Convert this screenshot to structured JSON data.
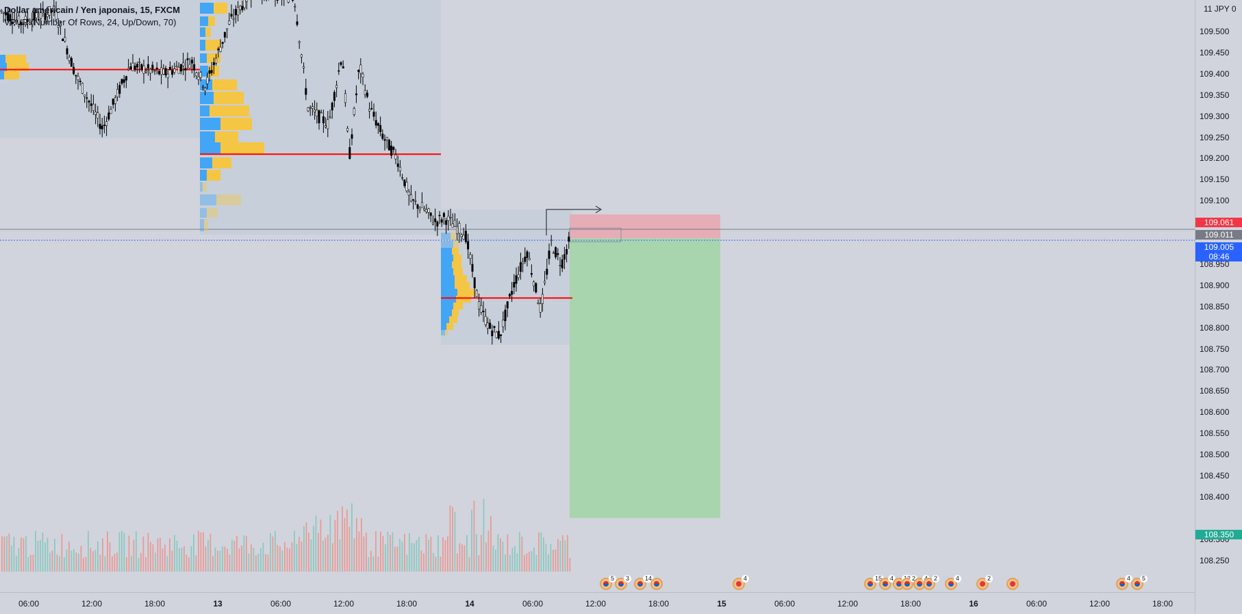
{
  "header": {
    "symbol_line": "Dollar américain / Yen japonais, 15, FXCM",
    "indicator_line": "VPVR (Number Of Rows, 24, Up/Down, 70)",
    "currency_label": "11 JPY 0"
  },
  "price_axis": {
    "ticks": [
      "109.500",
      "109.450",
      "109.400",
      "109.350",
      "109.300",
      "109.250",
      "109.200",
      "109.150",
      "109.100",
      "108.950",
      "108.900",
      "108.850",
      "108.800",
      "108.750",
      "108.700",
      "108.650",
      "108.600",
      "108.550",
      "108.500",
      "108.450",
      "108.400",
      "108.300",
      "108.250"
    ],
    "range": [
      108.22,
      109.55
    ],
    "labels": {
      "stop": {
        "value": "109.061",
        "color": "#f23645"
      },
      "entry": {
        "value": "109.011",
        "color": "#787b86"
      },
      "last": {
        "value": "109.005",
        "countdown": "08:46",
        "color": "#2962ff"
      },
      "target": {
        "value": "108.350",
        "color": "#22ab94"
      }
    }
  },
  "time_axis": {
    "labels": [
      "06:00",
      "12:00",
      "18:00",
      "13",
      "06:00",
      "12:00",
      "18:00",
      "14",
      "06:00",
      "12:00",
      "18:00",
      "15",
      "06:00",
      "12:00",
      "18:00",
      "16",
      "06:00",
      "12:00",
      "18:00"
    ],
    "day_labels": [
      "13",
      "14",
      "15",
      "16"
    ]
  },
  "events": [
    {
      "type": "flag",
      "count": "5"
    },
    {
      "type": "flag",
      "count": "3"
    },
    {
      "type": "flag",
      "count": "14"
    },
    {
      "type": "flag",
      "count": ""
    },
    {
      "type": "red",
      "count": "4"
    },
    {
      "type": "flag",
      "count": "15"
    },
    {
      "type": "flag",
      "count": "4"
    },
    {
      "type": "flag",
      "count": "13"
    },
    {
      "type": "flag",
      "count": "2"
    },
    {
      "type": "flag",
      "count": "4"
    },
    {
      "type": "flag",
      "count": "2"
    },
    {
      "type": "flag",
      "count": "4"
    },
    {
      "type": "red",
      "count": "2"
    },
    {
      "type": "red",
      "count": ""
    },
    {
      "type": "flag",
      "count": "4"
    },
    {
      "type": "flag",
      "count": "5"
    }
  ],
  "chart_data": {
    "type": "candlestick",
    "symbol": "USDJPY",
    "interval": "15",
    "position": {
      "type": "short",
      "entry": 109.011,
      "stop": 109.061,
      "target": 108.35
    },
    "poc_lines": [
      109.41,
      109.21,
      108.87
    ],
    "last_price": 109.005,
    "colors": {
      "up": "#26a69a",
      "down": "#ef5350",
      "vp_up": "#42a5f5",
      "vp_down": "#f5c544",
      "poc": "#ff0000",
      "loss_zone": "#f0a0a8",
      "profit_zone": "#a5d6a7"
    }
  }
}
